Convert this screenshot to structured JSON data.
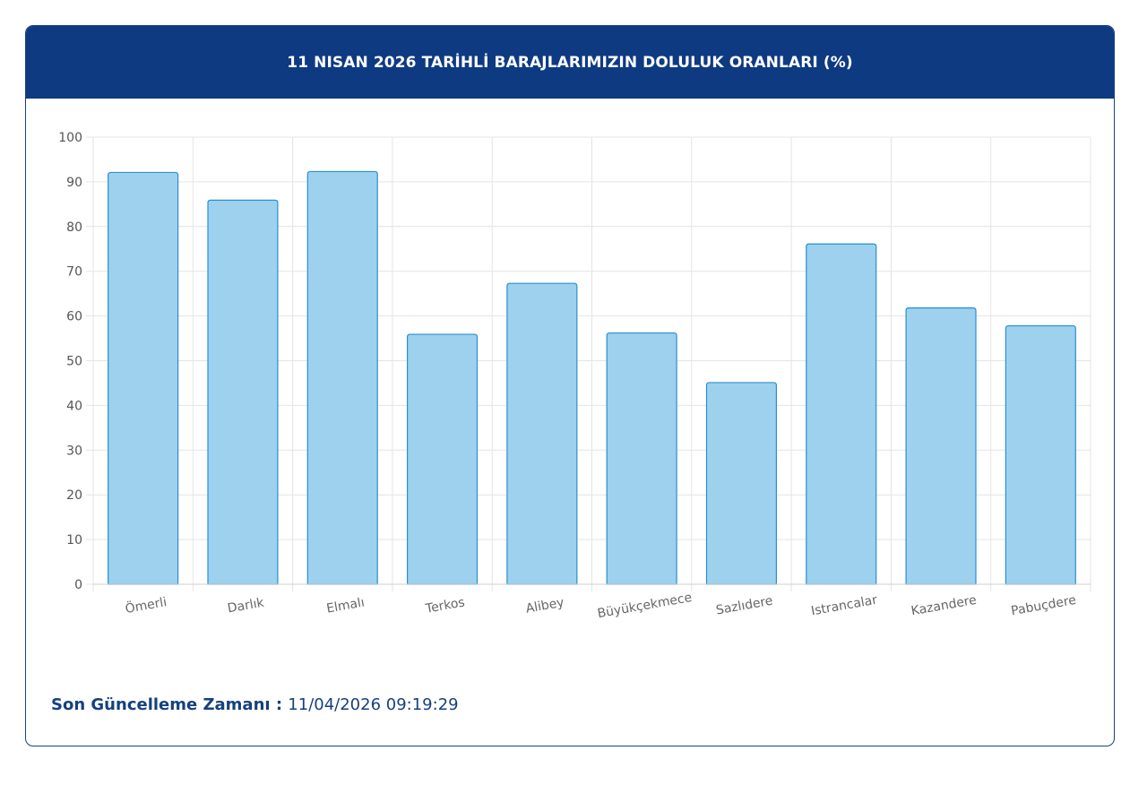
{
  "header": {
    "title": "11 NISAN 2026 TARİHLİ BARAJLARIMIZIN DOLULUK ORANLARI (%)"
  },
  "footer": {
    "label": "Son Güncelleme Zamanı",
    "separator": " : ",
    "value": "11/04/2026 09:19:29"
  },
  "colors": {
    "header_bg": "#0e3a82",
    "bar_fill": "#9dd1ee",
    "bar_stroke": "#2a8fd1",
    "footer_text": "#16407f"
  },
  "chart_data": {
    "type": "bar",
    "categories": [
      "Ömerli",
      "Darlık",
      "Elmalı",
      "Terkos",
      "Alibey",
      "Büyükçekmece",
      "Sazlıdere",
      "Istrancalar",
      "Kazandere",
      "Pabuçdere"
    ],
    "values": [
      92.1,
      85.9,
      92.3,
      55.9,
      67.3,
      56.2,
      45.1,
      76.1,
      61.8,
      57.8
    ],
    "ylim": [
      0,
      100
    ],
    "yticks": [
      0,
      10,
      20,
      30,
      40,
      50,
      60,
      70,
      80,
      90,
      100
    ],
    "grid": true
  }
}
